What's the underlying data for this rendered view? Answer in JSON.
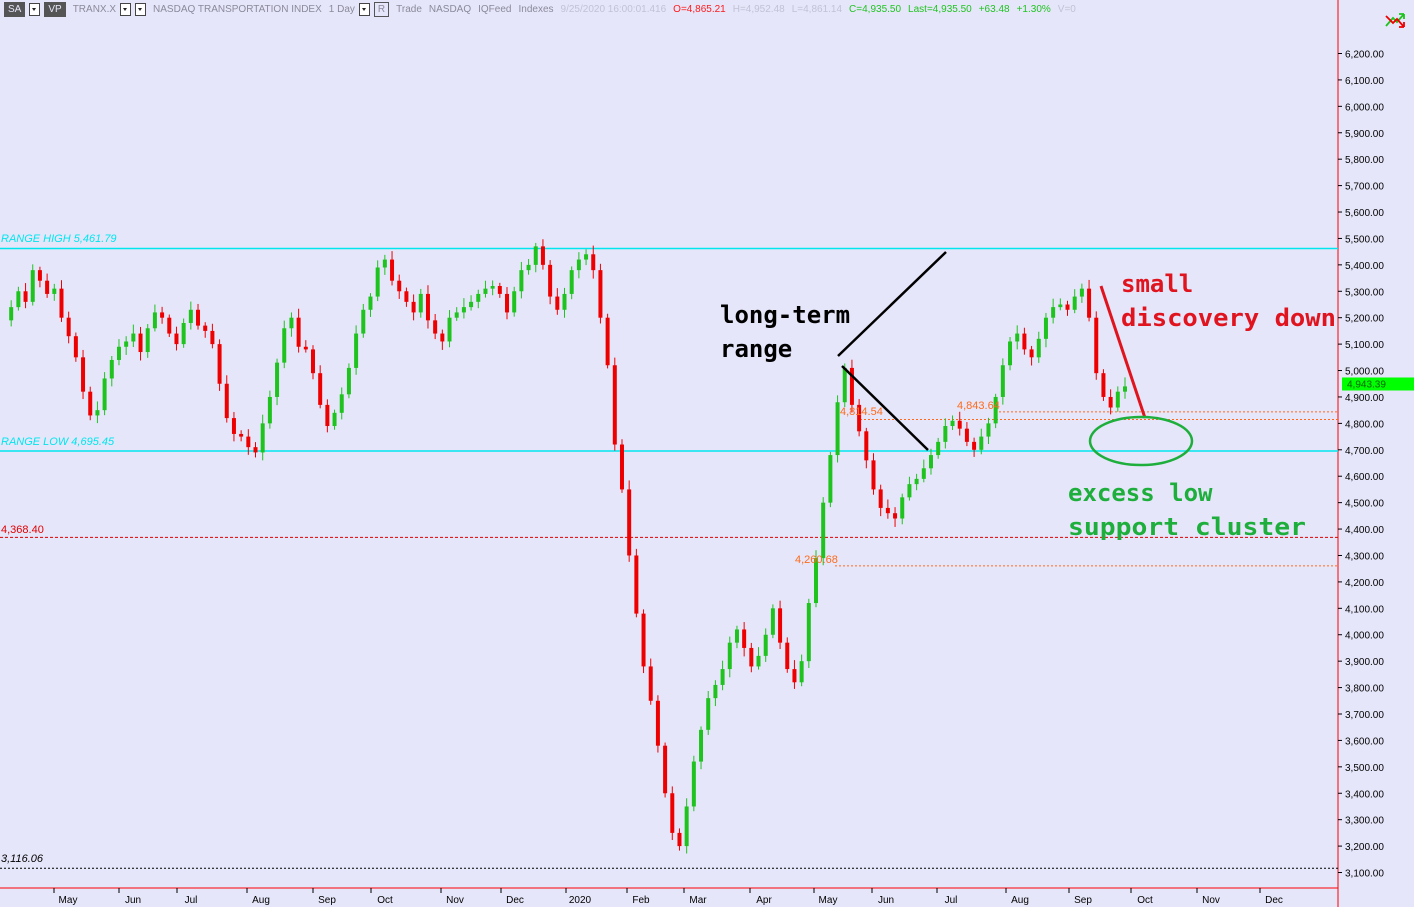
{
  "toolbar": {
    "sa_button": "SA",
    "vp_button": "VP",
    "symbol": "TRANX.X",
    "description": "NASDAQ TRANSPORTATION INDEX",
    "interval": "1 Day",
    "r_button": "R",
    "trade": "Trade",
    "exchange": "NASDAQ",
    "feed": "IQFeed",
    "category": "Indexes",
    "datetime": "9/25/2020  16:00:01.416",
    "open": "O=4,865.21",
    "high": "H=4,952.48",
    "low": "L=4,861.14",
    "close": "C=4,935.50",
    "last": "Last=4,935.50",
    "change": "+63.48",
    "change_pct": "+1.30%",
    "volume": "V=0"
  },
  "corner_icon": "crossed-arrows-icon",
  "colors": {
    "background": "#e6e6fa",
    "range_line": "#00e5ee",
    "up_candle": "#1ec31e",
    "down_candle": "#ee0000",
    "level_red": "#e00000",
    "level_orange": "#ff6a1a",
    "annotation_black": "#000000",
    "annotation_red": "#e0141e",
    "annotation_green": "#1eae3c",
    "price_tag": "#00ff00"
  },
  "chart_data": {
    "type": "candlestick",
    "title": "NASDAQ TRANSPORTATION INDEX",
    "ylim": [
      3050,
      6300
    ],
    "x_tick_labels": [
      "May",
      "Jun",
      "Jul",
      "Aug",
      "Sep",
      "Oct",
      "Nov",
      "Dec",
      "2020",
      "Feb",
      "Mar",
      "Apr",
      "May",
      "Jun",
      "Jul",
      "Aug",
      "Sep",
      "Oct",
      "Nov",
      "Dec"
    ],
    "y_tick_labels": [
      "6,200.00",
      "6,100.00",
      "6,000.00",
      "5,900.00",
      "5,800.00",
      "5,700.00",
      "5,600.00",
      "5,500.00",
      "5,400.00",
      "5,300.00",
      "5,200.00",
      "5,100.00",
      "5,000.00",
      "4,900.00",
      "4,800.00",
      "4,700.00",
      "4,600.00",
      "4,500.00",
      "4,400.00",
      "4,300.00",
      "4,200.00",
      "4,100.00",
      "4,000.00",
      "3,900.00",
      "3,800.00",
      "3,700.00",
      "3,600.00",
      "3,500.00",
      "3,400.00",
      "3,300.00",
      "3,200.00",
      "3,100.00"
    ],
    "y_ticks": [
      6200,
      6100,
      6000,
      5900,
      5800,
      5700,
      5600,
      5500,
      5400,
      5300,
      5200,
      5100,
      5000,
      4900,
      4800,
      4700,
      4600,
      4500,
      4400,
      4300,
      4200,
      4100,
      4000,
      3900,
      3800,
      3700,
      3600,
      3500,
      3400,
      3300,
      3200,
      3100
    ],
    "last_price_tag": "4,943.39",
    "last_price": 4943.39,
    "levels": {
      "range_high": {
        "label": "RANGE HIGH 5,461.79",
        "value": 5461.79
      },
      "range_low": {
        "label": "RANGE LOW 4,695.45",
        "value": 4695.45
      },
      "support_red": {
        "label": "4,368.40",
        "value": 4368.4
      },
      "bottom": {
        "label": "3,116.06",
        "value": 3116.06
      },
      "orange_1": {
        "label": "4,814.54",
        "value": 4814.54
      },
      "orange_2": {
        "label": "4,843.64",
        "value": 4843.64
      },
      "orange_3": {
        "label": "4,260.68",
        "value": 4260.68
      }
    },
    "annotations": {
      "long_term_range": [
        "long-term",
        "range"
      ],
      "small_discovery_down": [
        "small",
        "discovery down"
      ],
      "excess_low_support": [
        "excess low",
        "support cluster"
      ]
    },
    "path": [
      5190,
      5240,
      5300,
      5260,
      5380,
      5340,
      5290,
      5310,
      5200,
      5130,
      5050,
      4920,
      4830,
      4850,
      4970,
      5040,
      5090,
      5110,
      5140,
      5070,
      5160,
      5220,
      5200,
      5140,
      5100,
      5180,
      5230,
      5170,
      5150,
      5100,
      4950,
      4820,
      4760,
      4750,
      4710,
      4690,
      4800,
      4900,
      5030,
      5160,
      5200,
      5090,
      5080,
      4990,
      4870,
      4790,
      4840,
      4910,
      5010,
      5140,
      5230,
      5280,
      5390,
      5420,
      5340,
      5300,
      5260,
      5220,
      5290,
      5190,
      5140,
      5110,
      5200,
      5220,
      5240,
      5260,
      5290,
      5310,
      5320,
      5290,
      5220,
      5300,
      5380,
      5400,
      5470,
      5400,
      5280,
      5230,
      5290,
      5380,
      5420,
      5440,
      5380,
      5200,
      5020,
      4720,
      4550,
      4300,
      4080,
      3880,
      3750,
      3580,
      3400,
      3250,
      3200,
      3350,
      3520,
      3640,
      3760,
      3810,
      3870,
      3970,
      4020,
      3950,
      3880,
      3920,
      4000,
      4100,
      3970,
      3870,
      3820,
      3900,
      4120,
      4290,
      4500,
      4680,
      4880,
      5010,
      4870,
      4770,
      4660,
      4550,
      4480,
      4460,
      4440,
      4520,
      4570,
      4590,
      4630,
      4680,
      4730,
      4790,
      4810,
      4780,
      4730,
      4700,
      4750,
      4800,
      4900,
      5020,
      5110,
      5140,
      5080,
      5050,
      5120,
      5200,
      5240,
      5250,
      5230,
      5280,
      5310,
      5200,
      4990,
      4900,
      4860,
      4920,
      4940
    ]
  }
}
